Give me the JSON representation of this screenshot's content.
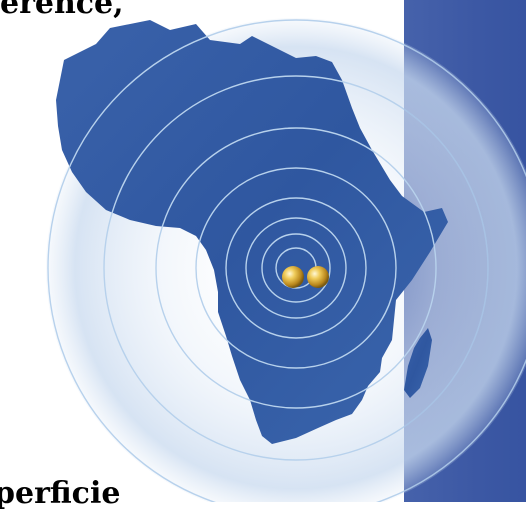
{
  "texts": {
    "top_fragment": "erence,",
    "bottom_fragment": "perficie"
  },
  "colors": {
    "panel_blue": "#3f5aa6",
    "map_blue": "#3a63a8",
    "ring_stroke": "#a9c8e8",
    "marker_gold": "#d4a72c"
  },
  "icons": {
    "map": "africa-map",
    "markers": "gold-sphere"
  }
}
